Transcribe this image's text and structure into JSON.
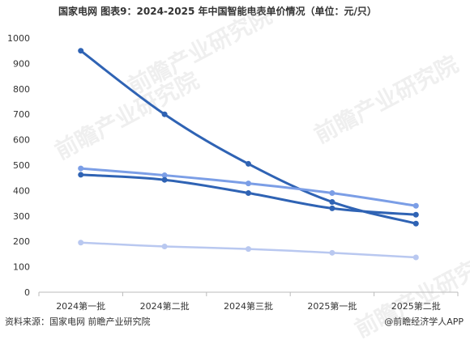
{
  "header": {
    "title": "国家电网  图表9：2024-2025 年中国智能电表单价情况（单位：元/只）"
  },
  "footer": {
    "source": "资料来源：国家电网 前瞻产业研究院",
    "brand": "@前瞻经济学人APP"
  },
  "watermark": {
    "text": "前瞻产业研究院"
  },
  "chart_data": {
    "type": "line",
    "categories": [
      "2024第一批",
      "2024第二批",
      "2024第三批",
      "2025第一批",
      "2025第二批"
    ],
    "ylim": [
      0,
      1000
    ],
    "yticks": [
      0,
      100,
      200,
      300,
      400,
      500,
      600,
      700,
      800,
      900,
      1000
    ],
    "grid": false,
    "legend": "none",
    "series": [
      {
        "color": "#2f63b4",
        "width": 3,
        "values": [
          950,
          700,
          505,
          355,
          270
        ]
      },
      {
        "color": "#7b9ee6",
        "width": 3,
        "values": [
          487,
          460,
          428,
          390,
          340
        ]
      },
      {
        "color": "#2f63b4",
        "width": 3,
        "values": [
          462,
          442,
          390,
          330,
          305
        ]
      },
      {
        "color": "#b9c8f0",
        "width": 2.5,
        "values": [
          195,
          180,
          170,
          155,
          137
        ]
      }
    ]
  }
}
